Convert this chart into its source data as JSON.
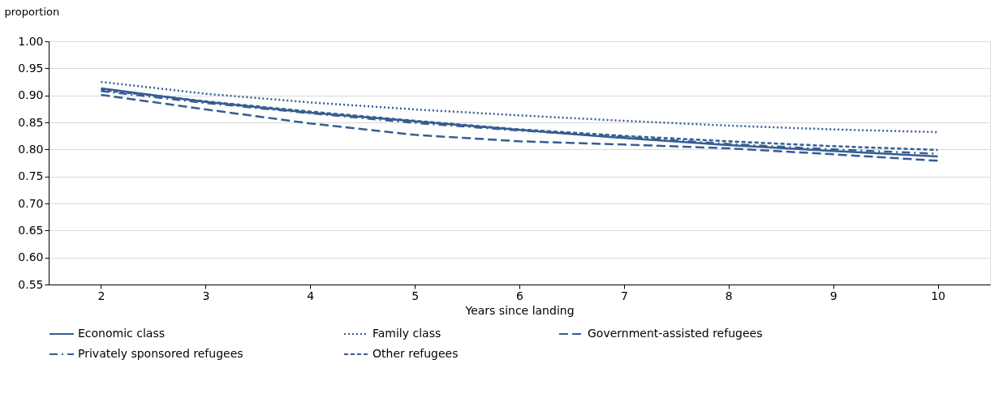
{
  "chart_data": {
    "type": "line",
    "xlabel": "Years since landing",
    "ylabel": "proportion",
    "x": [
      2,
      3,
      4,
      5,
      6,
      7,
      8,
      9,
      10
    ],
    "xlim": [
      1.5,
      10.5
    ],
    "xticks": [
      2,
      3,
      4,
      5,
      6,
      7,
      8,
      9,
      10
    ],
    "ylim": [
      0.55,
      1.0
    ],
    "yticks": [
      0.55,
      {
        "value": 0.6,
        "label": "0.60"
      },
      0.65,
      {
        "value": 0.7,
        "label": "0.70"
      },
      0.75,
      {
        "value": 0.8,
        "label": "0.80"
      },
      0.85,
      {
        "value": 0.9,
        "label": "0.90"
      },
      0.95,
      {
        "value": 1.0,
        "label": "1.00"
      }
    ],
    "grid": "y",
    "legend": "bottom",
    "marker": "none",
    "series": [
      {
        "name": "Economic class",
        "color": "#355e92",
        "line_style": "solid",
        "values": [
          0.913,
          0.888,
          0.868,
          0.852,
          0.836,
          0.821,
          0.808,
          0.797,
          0.787
        ]
      },
      {
        "name": "Family class",
        "color": "#355e92",
        "line_style": "dotted",
        "values": [
          0.925,
          0.903,
          0.887,
          0.874,
          0.863,
          0.853,
          0.844,
          0.837,
          0.832
        ]
      },
      {
        "name": "Government-assisted refugees",
        "color": "#355e92",
        "line_style": "longdash",
        "values": [
          0.901,
          0.874,
          0.848,
          0.827,
          0.815,
          0.809,
          0.802,
          0.791,
          0.779
        ]
      },
      {
        "name": "Privately sponsored refugees",
        "color": "#355e92",
        "line_style": "dashdot",
        "values": [
          0.908,
          0.886,
          0.867,
          0.849,
          0.835,
          0.823,
          0.81,
          0.8,
          0.792
        ]
      },
      {
        "name": "Other refugees",
        "color": "#355e92",
        "line_style": "dashed",
        "values": [
          0.91,
          0.889,
          0.87,
          0.853,
          0.837,
          0.825,
          0.815,
          0.806,
          0.799
        ]
      }
    ]
  }
}
